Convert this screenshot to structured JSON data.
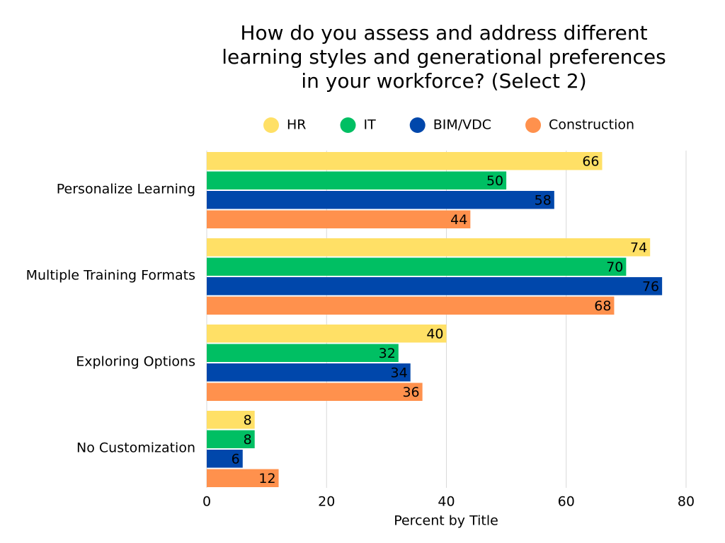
{
  "chart_data": {
    "type": "hbar",
    "title": [
      "How do you assess and address different",
      "learning styles and generational preferences",
      "in your workforce? (Select 2)"
    ],
    "x_label": "Percent by Title",
    "categories": [
      "Personalize Learning",
      "Multiple Training Formats",
      "Exploring Options",
      "No Customization"
    ],
    "series": [
      {
        "name": "HR",
        "color": "#FFE066",
        "label_color": "#000000",
        "values": [
          66,
          74,
          40,
          8
        ]
      },
      {
        "name": "IT",
        "color": "#00BF63",
        "label_color": "#000000",
        "values": [
          50,
          70,
          32,
          8
        ]
      },
      {
        "name": "BIM/VDC",
        "color": "#0047AB",
        "label_color": "#ffffff",
        "values": [
          58,
          76,
          34,
          6
        ]
      },
      {
        "name": "Construction",
        "color": "#FF914D",
        "label_color": "#000000",
        "values": [
          44,
          68,
          36,
          12
        ]
      }
    ],
    "xlim": [
      0,
      80
    ],
    "xticks": [
      0,
      20,
      40,
      60,
      80
    ],
    "grid": true,
    "legend": "top"
  }
}
